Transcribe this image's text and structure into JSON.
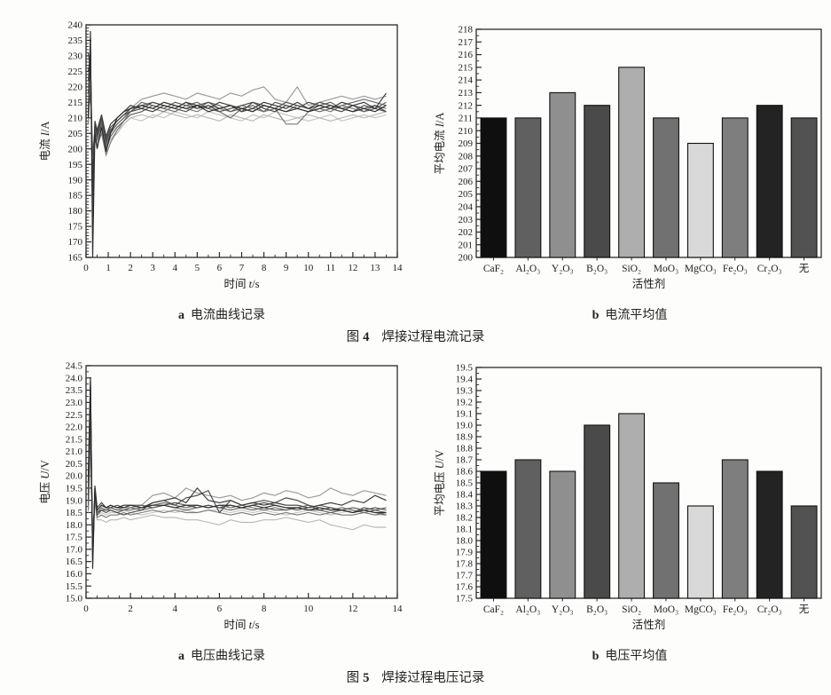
{
  "figures": [
    {
      "sub_a_letter": "a",
      "sub_a_text": "电流曲线记录",
      "sub_b_letter": "b",
      "sub_b_text": "电流平均值",
      "fig_word": "图",
      "fig_num": "4",
      "fig_text": "焊接过程电流记录"
    },
    {
      "sub_a_letter": "a",
      "sub_a_text": "电压曲线记录",
      "sub_b_letter": "b",
      "sub_b_text": "电压平均值",
      "fig_word": "图",
      "fig_num": "5",
      "fig_text": "焊接过程电压记录"
    }
  ],
  "colors": {
    "axis": "#2a2a2a",
    "text": "#1b1b1b",
    "bar_outline": "#111111"
  },
  "chart_data": [
    {
      "id": "current-lines",
      "type": "line",
      "ylabel": {
        "pre": "电流 ",
        "sym": "I",
        "post": "/A"
      },
      "xlabel": {
        "pre": "时间 ",
        "sym": "t",
        "post": "/s"
      },
      "xlim": [
        0,
        14
      ],
      "ylim": [
        165,
        240
      ],
      "xtick": 1,
      "xminor": 0.5,
      "ytick": 5,
      "yminor": 1,
      "xdec": 0,
      "ydec": 0,
      "grid": false,
      "legend": "none",
      "x": [
        0.1,
        0.2,
        0.3,
        0.4,
        0.5,
        0.7,
        0.9,
        1.1,
        1.4,
        1.7,
        2.0,
        2.5,
        3.0,
        3.5,
        4.0,
        4.5,
        5.0,
        5.5,
        6.0,
        6.5,
        7.0,
        7.5,
        8.0,
        8.5,
        9.0,
        9.5,
        10.0,
        10.5,
        11.0,
        11.5,
        12.0,
        12.5,
        13.0,
        13.5
      ],
      "series": [
        {
          "color": "#c4c4c4",
          "y": [
            213,
            219,
            196,
            204,
            202,
            207,
            200,
            203,
            206,
            208,
            210,
            209,
            211,
            210,
            212,
            211,
            210,
            212,
            211,
            210,
            209,
            211,
            210,
            212,
            211,
            210,
            209,
            210,
            211,
            209,
            210,
            211,
            210,
            211
          ]
        },
        {
          "color": "#b8b8b8",
          "y": [
            215,
            220,
            200,
            204,
            202,
            206,
            201,
            203,
            205,
            208,
            210,
            211,
            210,
            212,
            211,
            210,
            211,
            210,
            209,
            211,
            210,
            209,
            211,
            210,
            209,
            210,
            211,
            210,
            209,
            210,
            211,
            210,
            211,
            212
          ]
        },
        {
          "color": "#9a9a9a",
          "y": [
            220,
            228,
            195,
            207,
            204,
            209,
            202,
            206,
            208,
            210,
            213,
            216,
            217,
            218,
            217,
            216,
            218,
            217,
            216,
            218,
            217,
            219,
            220,
            216,
            215,
            220,
            214,
            215,
            216,
            217,
            216,
            217,
            216,
            217
          ]
        },
        {
          "color": "#7a7a7a",
          "y": [
            208,
            222,
            192,
            203,
            201,
            205,
            198,
            202,
            206,
            209,
            212,
            214,
            213,
            212,
            214,
            213,
            212,
            214,
            213,
            212,
            214,
            213,
            212,
            213,
            208,
            208,
            212,
            213,
            212,
            214,
            213,
            212,
            214,
            213
          ]
        },
        {
          "color": "#6a6a6a",
          "y": [
            218,
            226,
            188,
            206,
            203,
            209,
            201,
            205,
            208,
            210,
            212,
            215,
            214,
            213,
            212,
            214,
            215,
            213,
            212,
            210,
            213,
            212,
            214,
            213,
            212,
            214,
            213,
            212,
            213,
            214,
            215,
            216,
            215,
            214
          ]
        },
        {
          "color": "#5f5f5f",
          "y": [
            212,
            218,
            198,
            206,
            203,
            208,
            200,
            204,
            207,
            209,
            211,
            212,
            214,
            213,
            215,
            214,
            213,
            215,
            214,
            212,
            213,
            214,
            212,
            215,
            214,
            213,
            212,
            214,
            215,
            213,
            214,
            212,
            213,
            215
          ]
        },
        {
          "color": "#525252",
          "y": [
            222,
            232,
            178,
            207,
            204,
            210,
            202,
            206,
            209,
            211,
            213,
            214,
            215,
            214,
            213,
            212,
            214,
            215,
            213,
            214,
            212,
            215,
            214,
            213,
            215,
            214,
            213,
            215,
            214,
            213,
            212,
            214,
            213,
            212
          ]
        },
        {
          "color": "#4a4a4a",
          "y": [
            231,
            225,
            190,
            208,
            205,
            210,
            203,
            207,
            209,
            211,
            212,
            213,
            215,
            214,
            213,
            215,
            213,
            214,
            212,
            213,
            214,
            215,
            213,
            212,
            214,
            213,
            215,
            214,
            213,
            212,
            214,
            213,
            214,
            212
          ]
        },
        {
          "color": "#3a3a3a",
          "y": [
            225,
            230,
            185,
            209,
            206,
            211,
            204,
            208,
            210,
            212,
            214,
            213,
            212,
            214,
            213,
            215,
            214,
            213,
            215,
            214,
            212,
            213,
            215,
            214,
            213,
            215,
            213,
            214,
            213,
            215,
            214,
            215,
            213,
            218
          ]
        },
        {
          "color": "#2b2b2b",
          "y": [
            210,
            238,
            165,
            205,
            200,
            207,
            199,
            205,
            210,
            212,
            213,
            214,
            213,
            215,
            214,
            213,
            214,
            212,
            213,
            214,
            213,
            212,
            214,
            213,
            212,
            213,
            212,
            213,
            214,
            213,
            212,
            213,
            212,
            214
          ]
        }
      ]
    },
    {
      "id": "current-bars",
      "type": "bar",
      "ylabel": {
        "pre": "平均电流 ",
        "sym": "I",
        "post": "/A"
      },
      "xlabel": {
        "pre": "活性剂",
        "sym": "",
        "post": ""
      },
      "ylim": [
        200,
        218
      ],
      "ytick": 1,
      "yminor": 0.5,
      "ydec": 0,
      "grid": false,
      "legend": "none",
      "categories": [
        "CaF₂",
        "Al₂O₃",
        "Y₂O₃",
        "B₂O₃",
        "SiO₂",
        "MoO₃",
        "MgCO₃",
        "Fe₂O₃",
        "Cr₂O₃",
        "无"
      ],
      "values": [
        211,
        211,
        213,
        212,
        215,
        211,
        209,
        211,
        212,
        211
      ],
      "bar_colors": [
        "#0f0f0f",
        "#606060",
        "#8f8f8f",
        "#4a4a4a",
        "#aeaeae",
        "#717171",
        "#d9d9d9",
        "#7e7e7e",
        "#232323",
        "#525252"
      ]
    },
    {
      "id": "voltage-lines",
      "type": "line",
      "ylabel": {
        "pre": "电压 ",
        "sym": "U",
        "post": "/V"
      },
      "xlabel": {
        "pre": "时间 ",
        "sym": "t",
        "post": "/s"
      },
      "xlim": [
        0,
        14
      ],
      "ylim": [
        15.0,
        24.5
      ],
      "xtick": 2,
      "xminor": 0.5,
      "ytick": 0.5,
      "yminor": 0.25,
      "xdec": 0,
      "ydec": 1,
      "grid": false,
      "legend": "none",
      "x": [
        0.1,
        0.2,
        0.3,
        0.4,
        0.5,
        0.7,
        0.9,
        1.1,
        1.4,
        1.7,
        2.0,
        2.5,
        3.0,
        3.5,
        4.0,
        4.5,
        5.0,
        5.5,
        6.0,
        6.5,
        7.0,
        7.5,
        8.0,
        8.5,
        9.0,
        9.5,
        10.0,
        10.5,
        11.0,
        11.5,
        12.0,
        12.5,
        13.0,
        13.5
      ],
      "series": [
        {
          "color": "#c4c4c4",
          "y": [
            18.9,
            22.5,
            17.3,
            19.1,
            18.4,
            18.5,
            18.4,
            18.5,
            18.5,
            18.6,
            18.5,
            18.4,
            18.5,
            18.6,
            18.5,
            18.6,
            18.5,
            18.6,
            18.6,
            18.5,
            18.6,
            18.5,
            18.6,
            18.5,
            18.4,
            18.5,
            18.6,
            18.5,
            18.4,
            18.5,
            18.6,
            18.5,
            18.4,
            18.4
          ]
        },
        {
          "color": "#b8b8b8",
          "y": [
            18.5,
            21.0,
            17.6,
            18.9,
            18.2,
            18.2,
            18.1,
            18.2,
            18.2,
            18.3,
            18.2,
            18.3,
            18.4,
            18.3,
            18.3,
            18.2,
            18.2,
            18.1,
            18.0,
            18.2,
            18.1,
            18.1,
            18.2,
            18.2,
            18.3,
            18.2,
            18.1,
            18.2,
            18.0,
            17.9,
            17.8,
            18.0,
            17.9,
            17.9
          ]
        },
        {
          "color": "#9a9a9a",
          "y": [
            19.5,
            23.5,
            16.8,
            19.4,
            18.5,
            18.7,
            18.6,
            18.7,
            18.6,
            18.7,
            18.7,
            18.8,
            19.2,
            19.3,
            19.1,
            19.5,
            19.3,
            19.2,
            19.1,
            19.2,
            19.0,
            19.1,
            19.3,
            19.2,
            19.4,
            19.3,
            19.1,
            19.2,
            19.5,
            19.3,
            19.2,
            19.4,
            19.3,
            19.2
          ]
        },
        {
          "color": "#7a7a7a",
          "y": [
            18.6,
            21.8,
            17.4,
            19.0,
            18.3,
            18.4,
            18.3,
            18.4,
            18.4,
            18.5,
            18.4,
            18.5,
            18.6,
            18.5,
            18.6,
            18.5,
            18.5,
            18.6,
            18.5,
            18.4,
            18.5,
            18.4,
            18.5,
            18.4,
            18.5,
            18.4,
            18.5,
            18.4,
            18.5,
            18.4,
            18.4,
            18.5,
            18.4,
            18.5
          ]
        },
        {
          "color": "#6a6a6a",
          "y": [
            19.2,
            23.0,
            16.9,
            19.3,
            18.5,
            18.7,
            18.6,
            18.6,
            18.5,
            18.6,
            18.6,
            18.7,
            18.8,
            18.9,
            18.8,
            18.7,
            18.8,
            18.7,
            18.8,
            18.7,
            18.8,
            18.7,
            18.6,
            18.7,
            18.6,
            18.7,
            18.8,
            18.7,
            18.6,
            18.7,
            18.6,
            18.5,
            18.6,
            18.5
          ]
        },
        {
          "color": "#5f5f5f",
          "y": [
            18.8,
            22.8,
            17.0,
            19.2,
            18.5,
            18.6,
            18.6,
            18.7,
            18.6,
            18.6,
            18.7,
            18.6,
            18.7,
            18.8,
            18.7,
            18.6,
            18.7,
            18.8,
            18.7,
            18.6,
            18.7,
            18.6,
            18.7,
            18.6,
            18.6,
            18.7,
            18.6,
            18.6,
            18.5,
            18.6,
            18.5,
            18.6,
            18.5,
            18.4
          ]
        },
        {
          "color": "#525252",
          "y": [
            19.4,
            23.2,
            16.6,
            19.5,
            18.6,
            18.8,
            18.7,
            18.7,
            18.8,
            18.7,
            18.8,
            18.8,
            18.7,
            18.8,
            18.9,
            18.8,
            18.7,
            18.8,
            18.7,
            18.8,
            18.7,
            18.8,
            18.9,
            18.8,
            18.7,
            18.6,
            18.7,
            18.8,
            18.7,
            18.6,
            18.7,
            18.6,
            18.7,
            18.6
          ]
        },
        {
          "color": "#4a4a4a",
          "y": [
            19.0,
            22.3,
            17.2,
            19.3,
            18.4,
            18.6,
            18.5,
            18.6,
            18.5,
            18.4,
            18.5,
            18.6,
            18.9,
            19.0,
            18.8,
            19.1,
            19.2,
            19.4,
            18.5,
            19.0,
            18.8,
            18.9,
            19.0,
            18.9,
            19.1,
            19.0,
            18.8,
            18.6,
            18.7,
            18.6,
            18.5,
            18.7,
            18.6,
            18.7
          ]
        },
        {
          "color": "#3a3a3a",
          "y": [
            19.8,
            23.9,
            16.5,
            19.6,
            18.7,
            18.9,
            18.7,
            18.8,
            18.7,
            18.7,
            18.8,
            18.7,
            18.9,
            19.0,
            19.1,
            18.9,
            19.5,
            19.0,
            18.9,
            19.0,
            18.8,
            18.9,
            18.8,
            18.9,
            18.8,
            18.8,
            18.7,
            18.8,
            18.9,
            18.8,
            19.0,
            18.9,
            19.2,
            19.0
          ]
        },
        {
          "color": "#2b2b2b",
          "y": [
            20.0,
            24.0,
            16.2,
            19.5,
            18.6,
            18.8,
            18.7,
            18.8,
            18.7,
            18.8,
            18.8,
            18.7,
            18.8,
            18.8,
            18.7,
            18.8,
            18.8,
            18.7,
            18.8,
            18.8,
            18.7,
            18.8,
            18.7,
            18.8,
            18.7,
            18.7,
            18.6,
            18.7,
            18.6,
            18.6,
            18.5,
            18.6,
            18.5,
            18.5
          ]
        }
      ]
    },
    {
      "id": "voltage-bars",
      "type": "bar",
      "ylabel": {
        "pre": "平均电压 ",
        "sym": "U",
        "post": "/V"
      },
      "xlabel": {
        "pre": "活性剂",
        "sym": "",
        "post": ""
      },
      "ylim": [
        17.5,
        19.5
      ],
      "ytick": 0.1,
      "yminor": 0.05,
      "ydec": 1,
      "grid": false,
      "legend": "none",
      "categories": [
        "CaF₂",
        "Al₂O₃",
        "Y₂O₃",
        "B₂O₃",
        "SiO₂",
        "MoO₃",
        "MgCO₃",
        "Fe₂O₃",
        "Cr₂O₃",
        "无"
      ],
      "values": [
        18.6,
        18.7,
        18.6,
        19.0,
        19.1,
        18.5,
        18.3,
        18.7,
        18.6,
        18.3
      ],
      "bar_colors": [
        "#0f0f0f",
        "#606060",
        "#8f8f8f",
        "#4a4a4a",
        "#aeaeae",
        "#717171",
        "#d9d9d9",
        "#7e7e7e",
        "#232323",
        "#525252"
      ]
    }
  ]
}
